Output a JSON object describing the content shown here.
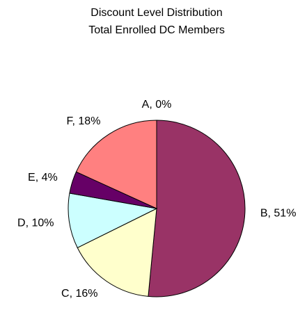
{
  "chart_data": {
    "type": "pie",
    "title": "Discount Level Distribution",
    "subtitle": "Total Enrolled DC Members",
    "categories": [
      "A",
      "B",
      "C",
      "D",
      "E",
      "F"
    ],
    "values": [
      0,
      51,
      16,
      10,
      4,
      18
    ],
    "value_labels": [
      "A, 0%",
      "B, 51%",
      "C, 16%",
      "D, 10%",
      "E, 4%",
      "F, 18%"
    ],
    "colors": [
      "#9999ff",
      "#993366",
      "#ffffcc",
      "#ccffff",
      "#660066",
      "#ff8080"
    ]
  }
}
